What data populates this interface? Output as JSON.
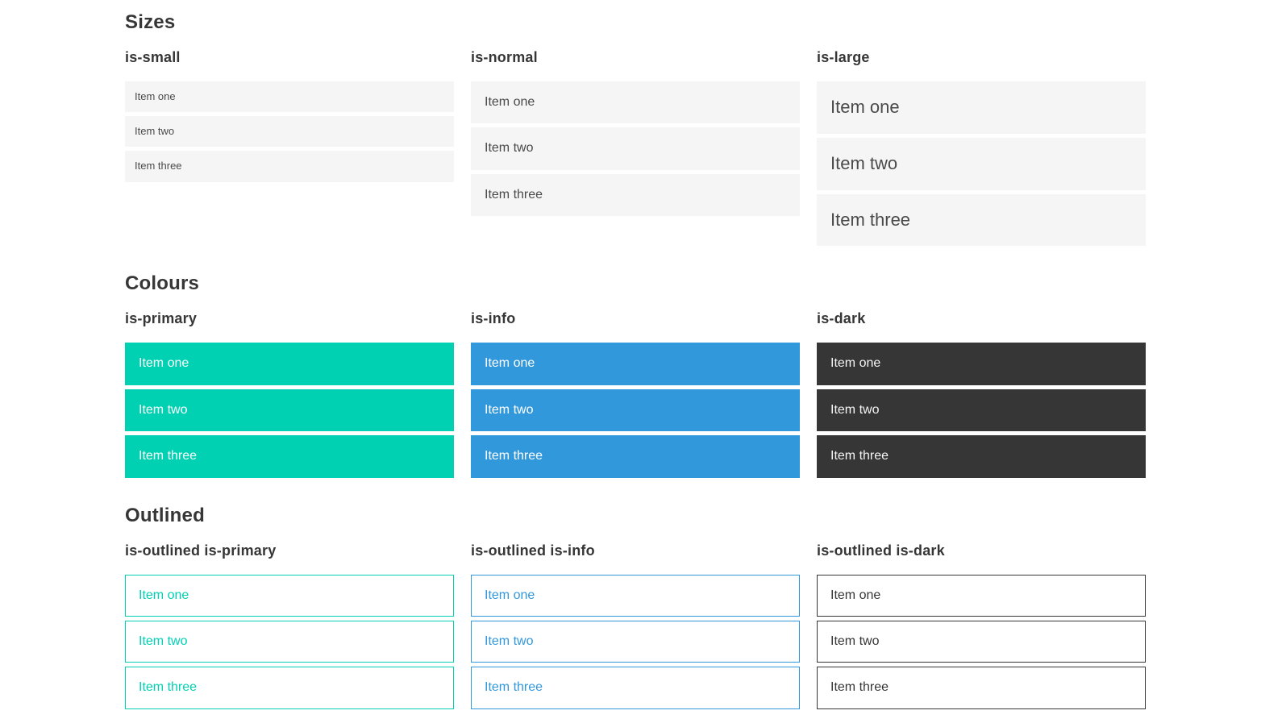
{
  "colors": {
    "primary": "#00d1b2",
    "info": "#3298dc",
    "dark": "#363636",
    "default_item_bg": "#f5f5f5",
    "default_item_text": "#4a4a4a",
    "heading_text": "#363636",
    "filled_item_text": "#ffffff",
    "page_bg": "#ffffff"
  },
  "sections": [
    {
      "title": "Sizes",
      "variants": [
        {
          "label": "is-small",
          "items": [
            "Item one",
            "Item two",
            "Item three"
          ]
        },
        {
          "label": "is-normal",
          "items": [
            "Item one",
            "Item two",
            "Item three"
          ]
        },
        {
          "label": "is-large",
          "items": [
            "Item one",
            "Item two",
            "Item three"
          ]
        }
      ]
    },
    {
      "title": "Colours",
      "variants": [
        {
          "label": "is-primary",
          "items": [
            "Item one",
            "Item two",
            "Item three"
          ]
        },
        {
          "label": "is-info",
          "items": [
            "Item one",
            "Item two",
            "Item three"
          ]
        },
        {
          "label": "is-dark",
          "items": [
            "Item one",
            "Item two",
            "Item three"
          ]
        }
      ]
    },
    {
      "title": "Outlined",
      "variants": [
        {
          "label": "is-outlined is-primary",
          "items": [
            "Item one",
            "Item two",
            "Item three"
          ]
        },
        {
          "label": "is-outlined is-info",
          "items": [
            "Item one",
            "Item two",
            "Item three"
          ]
        },
        {
          "label": "is-outlined is-dark",
          "items": [
            "Item one",
            "Item two",
            "Item three"
          ]
        }
      ]
    }
  ]
}
